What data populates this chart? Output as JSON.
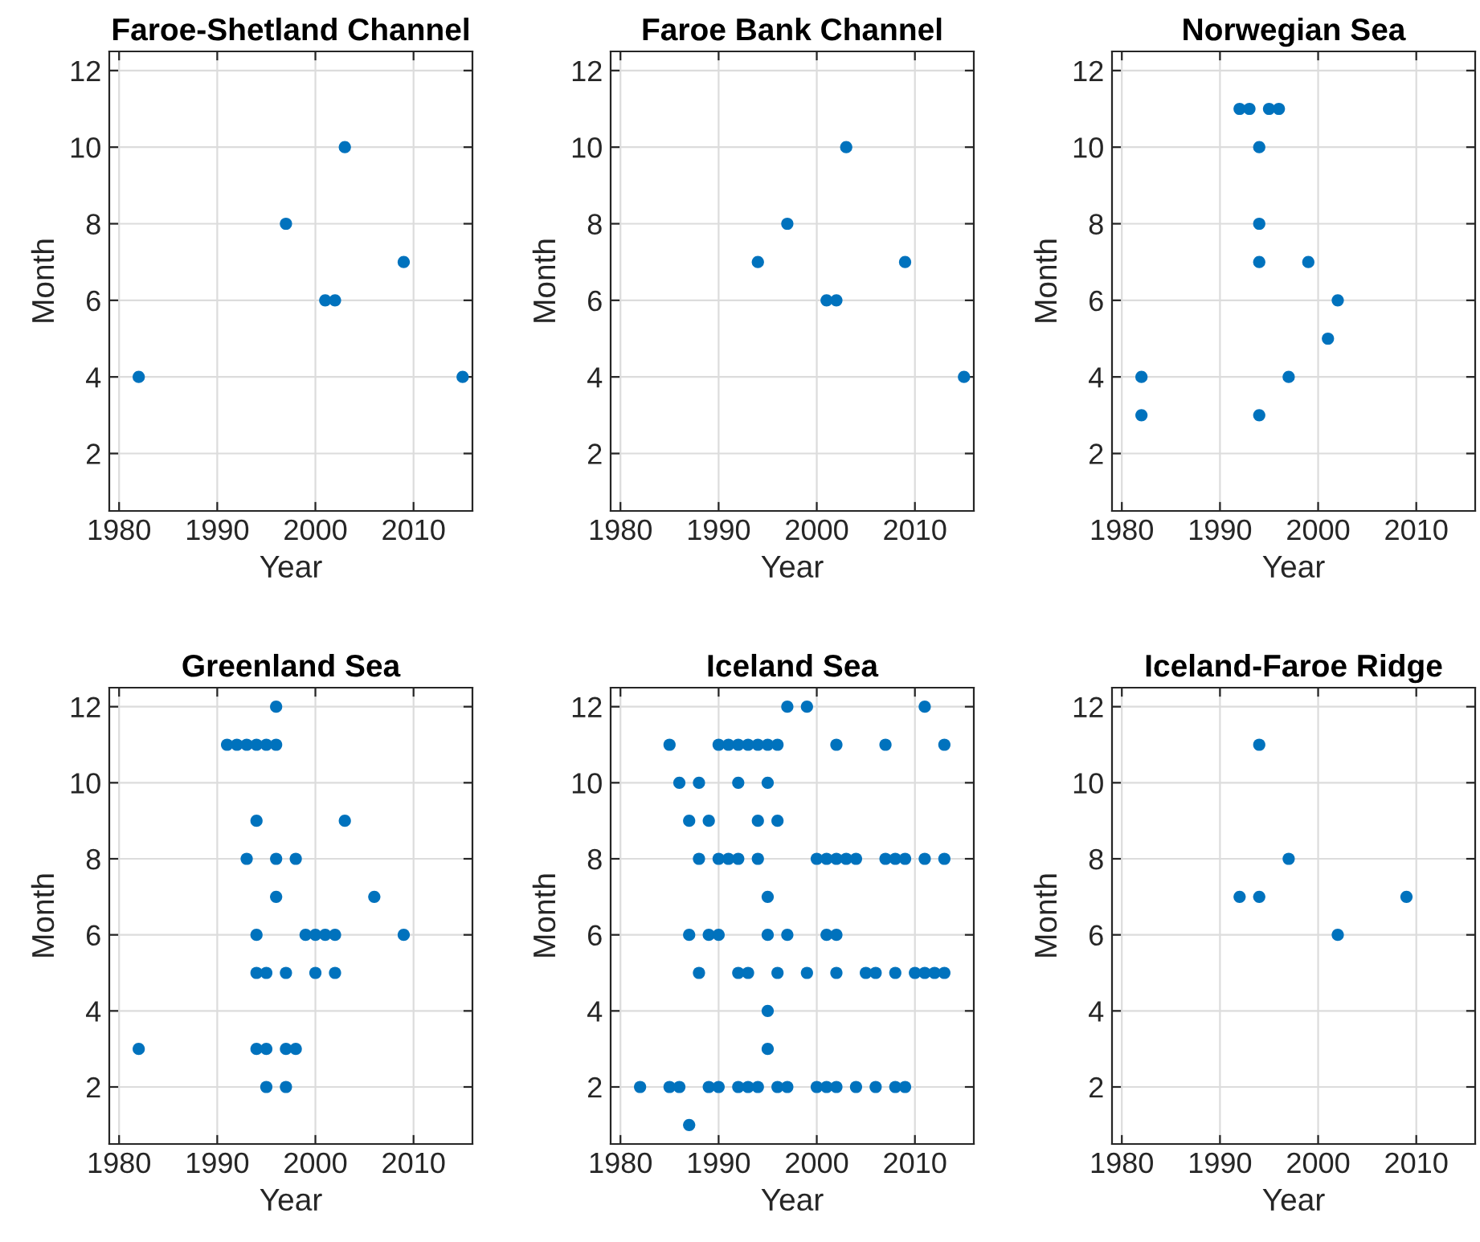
{
  "chart_data": [
    {
      "type": "scatter",
      "title": "Faroe-Shetland Channel",
      "xlabel": "Year",
      "ylabel": "Month",
      "color": "#0072bd",
      "marker": "circle",
      "grid": true,
      "xlim": [
        1979,
        2016
      ],
      "ylim": [
        0.5,
        12.5
      ],
      "xticks": [
        1980,
        1990,
        2000,
        2010
      ],
      "yticks": [
        2,
        4,
        6,
        8,
        10,
        12
      ],
      "x": [
        1982,
        1997,
        2001,
        2002,
        2003,
        2009,
        2015
      ],
      "values": [
        4,
        8,
        6,
        6,
        10,
        7,
        4
      ]
    },
    {
      "type": "scatter",
      "title": "Faroe Bank Channel",
      "xlabel": "Year",
      "ylabel": "Month",
      "color": "#0072bd",
      "marker": "circle",
      "grid": true,
      "xlim": [
        1979,
        2016
      ],
      "ylim": [
        0.5,
        12.5
      ],
      "xticks": [
        1980,
        1990,
        2000,
        2010
      ],
      "yticks": [
        2,
        4,
        6,
        8,
        10,
        12
      ],
      "x": [
        1994,
        1997,
        2001,
        2002,
        2003,
        2009,
        2015
      ],
      "values": [
        7,
        8,
        6,
        6,
        10,
        7,
        4
      ]
    },
    {
      "type": "scatter",
      "title": "Norwegian Sea",
      "xlabel": "Year",
      "ylabel": "Month",
      "color": "#0072bd",
      "marker": "circle",
      "grid": true,
      "xlim": [
        1979,
        2016
      ],
      "ylim": [
        0.5,
        12.5
      ],
      "xticks": [
        1980,
        1990,
        2000,
        2010
      ],
      "yticks": [
        2,
        4,
        6,
        8,
        10,
        12
      ],
      "x": [
        1982,
        1982,
        1992,
        1993,
        1994,
        1994,
        1994,
        1994,
        1995,
        1996,
        1997,
        1999,
        2001,
        2002
      ],
      "values": [
        4,
        3,
        11,
        11,
        10,
        8,
        7,
        3,
        11,
        11,
        4,
        7,
        5,
        6
      ]
    },
    {
      "type": "scatter",
      "title": "Greenland Sea",
      "xlabel": "Year",
      "ylabel": "Month",
      "color": "#0072bd",
      "marker": "circle",
      "grid": true,
      "xlim": [
        1979,
        2016
      ],
      "ylim": [
        0.5,
        12.5
      ],
      "xticks": [
        1980,
        1990,
        2000,
        2010
      ],
      "yticks": [
        2,
        4,
        6,
        8,
        10,
        12
      ],
      "x": [
        1982,
        1991,
        1992,
        1993,
        1993,
        1994,
        1994,
        1994,
        1994,
        1994,
        1995,
        1995,
        1995,
        1995,
        1996,
        1996,
        1996,
        1996,
        1997,
        1997,
        1997,
        1998,
        1998,
        1999,
        2000,
        2000,
        2001,
        2002,
        2002,
        2003,
        2006,
        2009
      ],
      "values": [
        3,
        11,
        11,
        11,
        8,
        11,
        9,
        6,
        5,
        3,
        11,
        5,
        3,
        2,
        11,
        12,
        8,
        7,
        5,
        3,
        2,
        8,
        3,
        6,
        6,
        5,
        6,
        6,
        5,
        9,
        7,
        6
      ]
    },
    {
      "type": "scatter",
      "title": "Iceland Sea",
      "xlabel": "Year",
      "ylabel": "Month",
      "color": "#0072bd",
      "marker": "circle",
      "grid": true,
      "xlim": [
        1979,
        2016
      ],
      "ylim": [
        0.5,
        12.5
      ],
      "xticks": [
        1980,
        1990,
        2000,
        2010
      ],
      "yticks": [
        2,
        4,
        6,
        8,
        10,
        12
      ],
      "x": [
        1982,
        1985,
        1985,
        1986,
        1986,
        1987,
        1987,
        1987,
        1988,
        1988,
        1988,
        1989,
        1989,
        1989,
        1990,
        1990,
        1990,
        1990,
        1991,
        1991,
        1992,
        1992,
        1992,
        1992,
        1992,
        1993,
        1993,
        1993,
        1994,
        1994,
        1994,
        1994,
        1995,
        1995,
        1995,
        1995,
        1995,
        1995,
        1996,
        1996,
        1996,
        1996,
        1997,
        1997,
        1997,
        1999,
        1999,
        2000,
        2000,
        2001,
        2001,
        2001,
        2002,
        2002,
        2002,
        2002,
        2002,
        2003,
        2004,
        2004,
        2005,
        2006,
        2006,
        2007,
        2007,
        2008,
        2008,
        2008,
        2009,
        2009,
        2010,
        2011,
        2011,
        2011,
        2012,
        2013,
        2013,
        2013
      ],
      "values": [
        2,
        11,
        2,
        10,
        2,
        9,
        6,
        1,
        10,
        8,
        5,
        9,
        6,
        2,
        11,
        8,
        6,
        2,
        11,
        8,
        11,
        10,
        8,
        5,
        2,
        11,
        5,
        2,
        11,
        9,
        8,
        2,
        11,
        10,
        7,
        6,
        4,
        3,
        11,
        9,
        5,
        2,
        12,
        6,
        2,
        12,
        5,
        8,
        2,
        8,
        6,
        2,
        11,
        8,
        6,
        5,
        2,
        8,
        8,
        2,
        5,
        5,
        2,
        11,
        8,
        8,
        5,
        2,
        8,
        2,
        5,
        12,
        8,
        5,
        5,
        11,
        8,
        5
      ]
    },
    {
      "type": "scatter",
      "title": "Iceland-Faroe Ridge",
      "xlabel": "Year",
      "ylabel": "Month",
      "color": "#0072bd",
      "marker": "circle",
      "grid": true,
      "xlim": [
        1979,
        2016
      ],
      "ylim": [
        0.5,
        12.5
      ],
      "xticks": [
        1980,
        1990,
        2000,
        2010
      ],
      "yticks": [
        2,
        4,
        6,
        8,
        10,
        12
      ],
      "x": [
        1992,
        1994,
        1994,
        1997,
        2002,
        2009
      ],
      "values": [
        7,
        11,
        7,
        8,
        6,
        7
      ]
    }
  ]
}
